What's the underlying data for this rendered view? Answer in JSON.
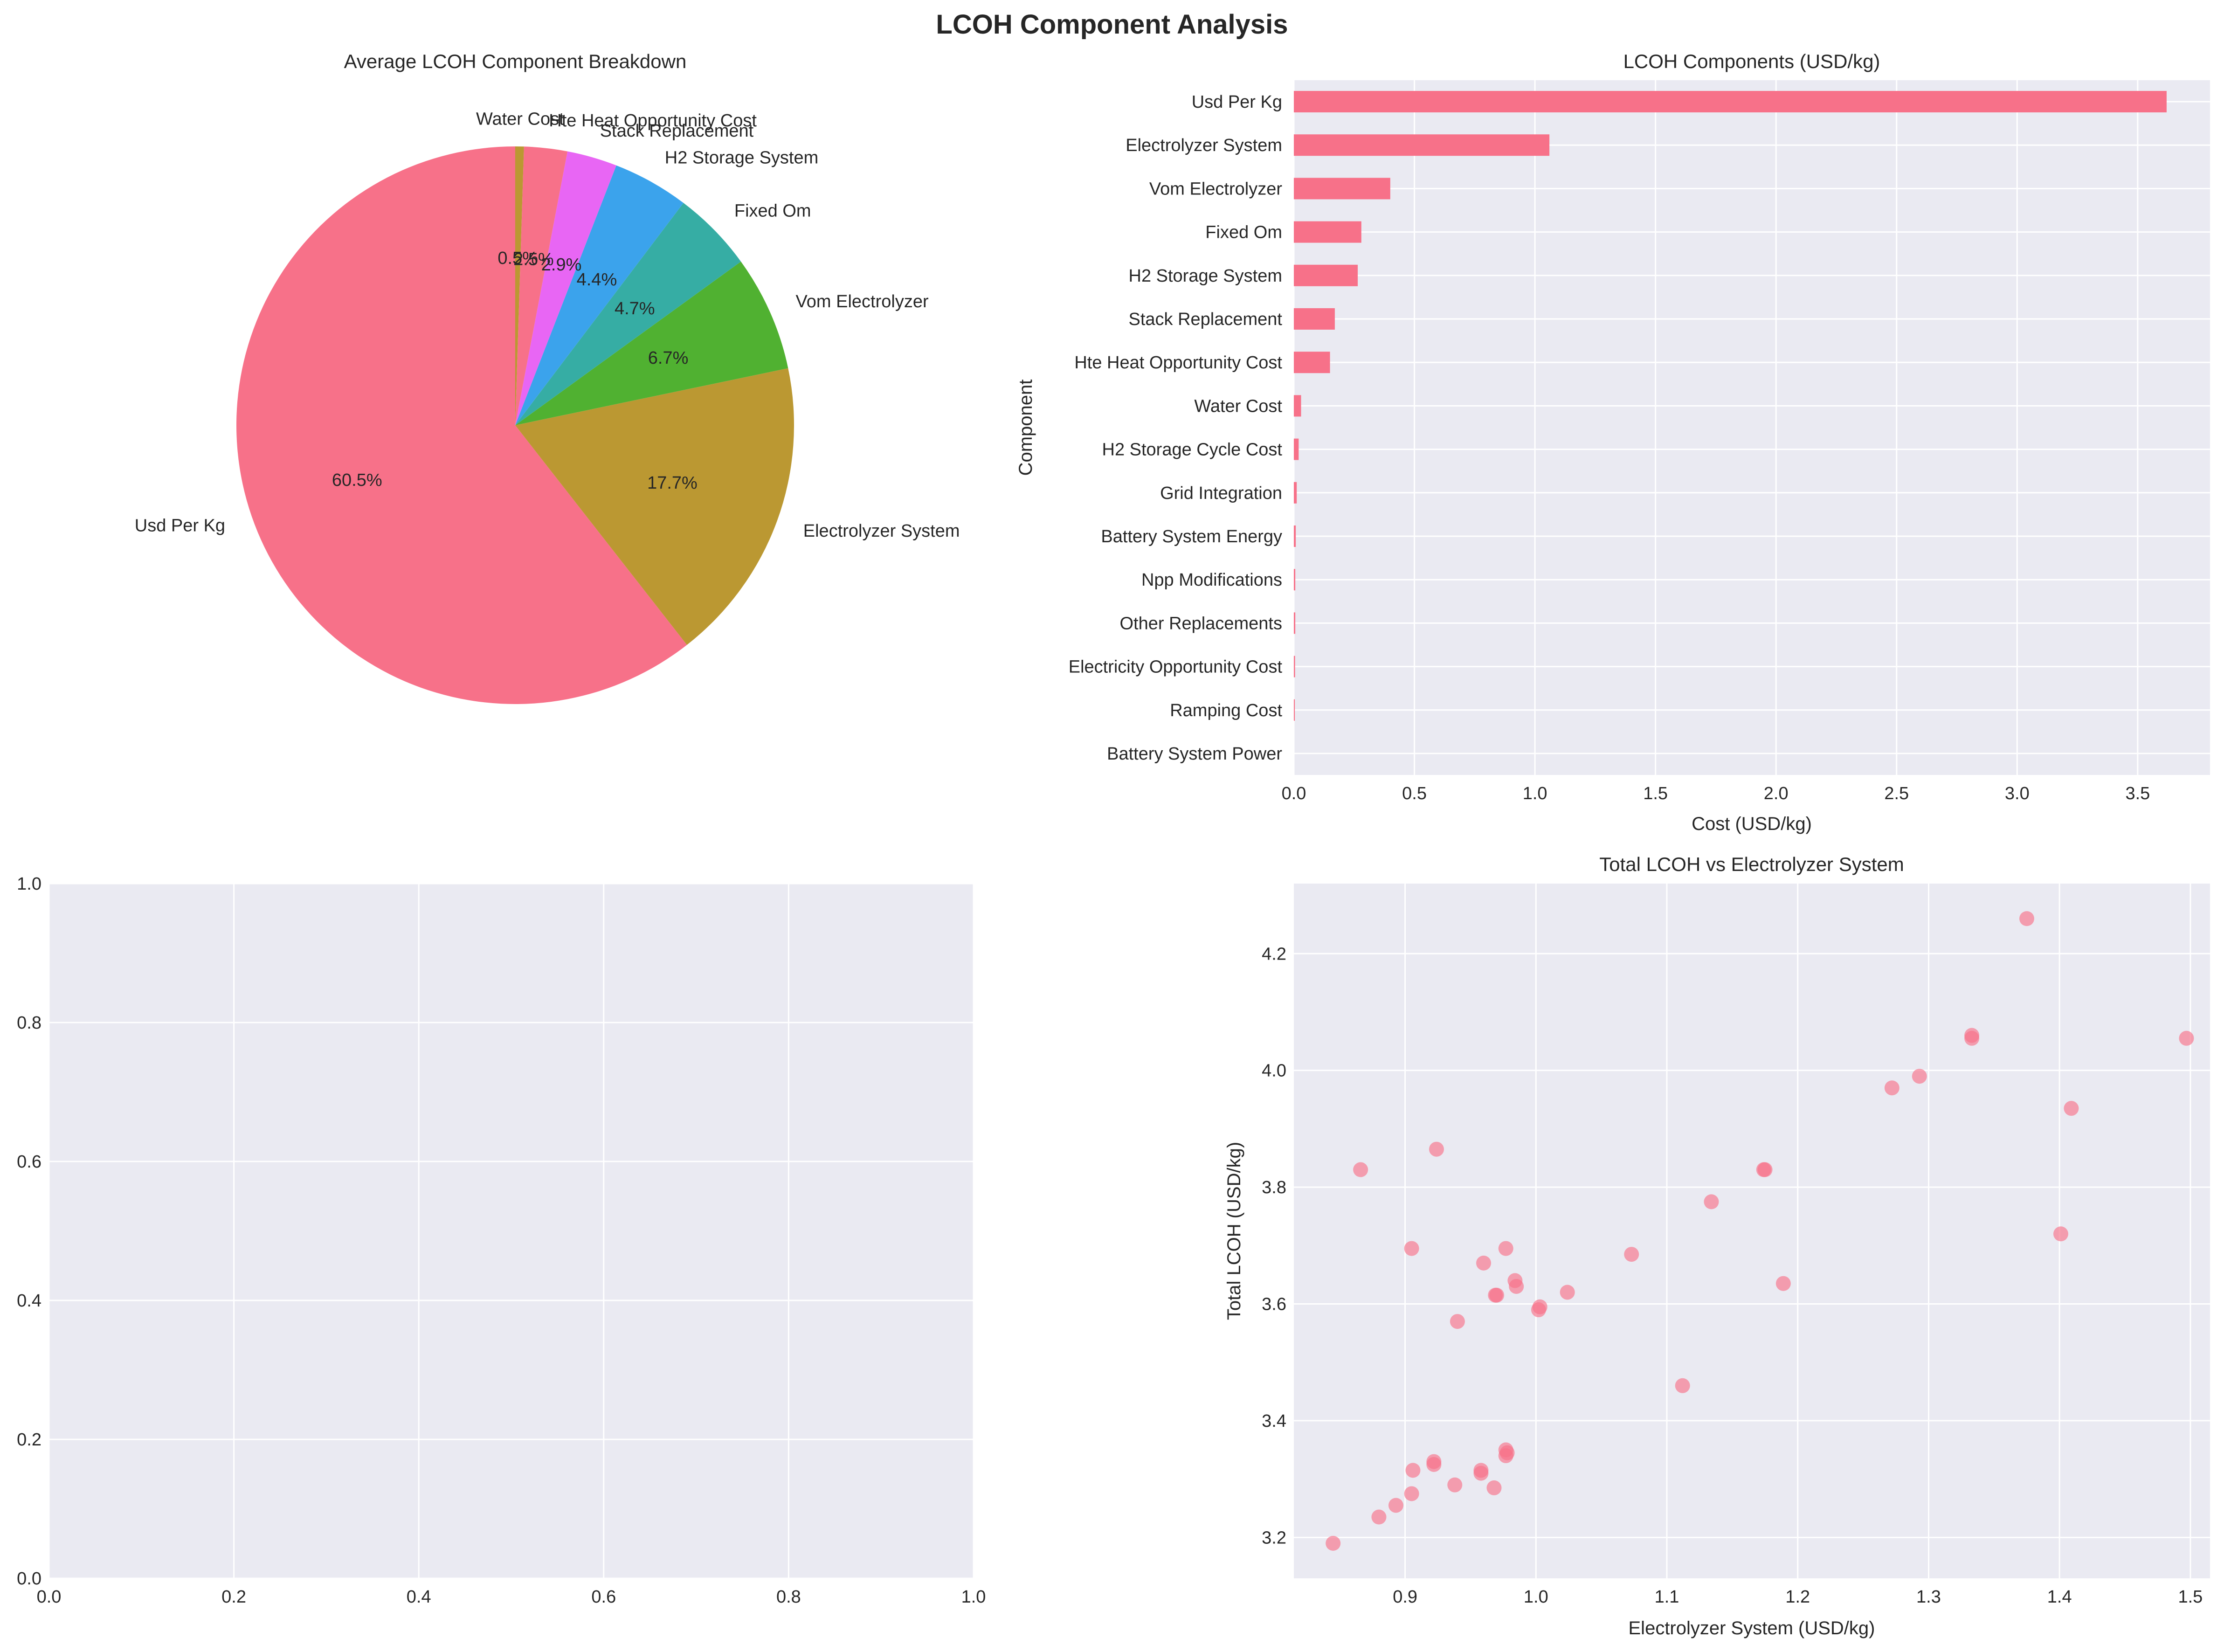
{
  "figure": {
    "title": "LCOH Component Analysis"
  },
  "chart_data": [
    {
      "type": "pie",
      "title": "Average LCOH Component Breakdown",
      "start_angle_deg": 90,
      "direction": "counterclockwise",
      "slices": [
        {
          "label": "Usd Per Kg",
          "pct": 60.5,
          "pct_label": "60.5%",
          "color": "#f77189"
        },
        {
          "label": "Electrolyzer System",
          "pct": 17.7,
          "pct_label": "17.7%",
          "color": "#bb9832"
        },
        {
          "label": "Vom Electrolyzer",
          "pct": 6.7,
          "pct_label": "6.7%",
          "color": "#50b131"
        },
        {
          "label": "Fixed Om",
          "pct": 4.7,
          "pct_label": "4.7%",
          "color": "#36ada4"
        },
        {
          "label": "H2 Storage System",
          "pct": 4.4,
          "pct_label": "4.4%",
          "color": "#3ba3ec"
        },
        {
          "label": "Stack Replacement",
          "pct": 2.9,
          "pct_label": "2.9%",
          "color": "#e866f4"
        },
        {
          "label": "Hte Heat Opportunity Cost",
          "pct": 2.5,
          "pct_label": "2.5%",
          "color": "#f77189"
        },
        {
          "label": "Water Cost",
          "pct": 0.5,
          "pct_label": "0.5%",
          "color": "#bb9832"
        }
      ]
    },
    {
      "type": "bar",
      "orientation": "horizontal",
      "title": "LCOH Components (USD/kg)",
      "xlabel": "Cost (USD/kg)",
      "ylabel": "Component",
      "xlim": [
        0,
        3.8
      ],
      "xticks": [
        0.0,
        0.5,
        1.0,
        1.5,
        2.0,
        2.5,
        3.0,
        3.5
      ],
      "xtick_labels": [
        "0.0",
        "0.5",
        "1.0",
        "1.5",
        "2.0",
        "2.5",
        "3.0",
        "3.5"
      ],
      "color": "#f77189",
      "categories": [
        "Usd Per Kg",
        "Electrolyzer System",
        "Vom Electrolyzer",
        "Fixed Om",
        "H2 Storage System",
        "Stack Replacement",
        "Hte Heat Opportunity Cost",
        "Water Cost",
        "H2 Storage Cycle Cost",
        "Grid Integration",
        "Battery System Energy",
        "Npp Modifications",
        "Other Replacements",
        "Electricity Opportunity Cost",
        "Ramping Cost",
        "Battery System Power"
      ],
      "values": [
        3.62,
        1.06,
        0.4,
        0.28,
        0.265,
        0.17,
        0.15,
        0.03,
        0.02,
        0.012,
        0.008,
        0.006,
        0.006,
        0.005,
        0.004,
        0.0
      ]
    },
    {
      "type": "scatter",
      "title": "",
      "xlabel": "",
      "ylabel": "",
      "xlim": [
        0,
        1
      ],
      "ylim": [
        0,
        1
      ],
      "xticks": [
        0.0,
        0.2,
        0.4,
        0.6,
        0.8,
        1.0
      ],
      "xtick_labels": [
        "0.0",
        "0.2",
        "0.4",
        "0.6",
        "0.8",
        "1.0"
      ],
      "yticks": [
        0.0,
        0.2,
        0.4,
        0.6,
        0.8,
        1.0
      ],
      "ytick_labels": [
        "0.0",
        "0.2",
        "0.4",
        "0.6",
        "0.8",
        "1.0"
      ],
      "points": []
    },
    {
      "type": "scatter",
      "title": "Total LCOH vs Electrolyzer System",
      "xlabel": "Electrolyzer System (USD/kg)",
      "ylabel": "Total LCOH (USD/kg)",
      "xlim": [
        0.815,
        1.515
      ],
      "ylim": [
        3.13,
        4.32
      ],
      "xticks": [
        0.9,
        1.0,
        1.1,
        1.2,
        1.3,
        1.4,
        1.5
      ],
      "xtick_labels": [
        "0.9",
        "1.0",
        "1.1",
        "1.2",
        "1.3",
        "1.4",
        "1.5"
      ],
      "yticks": [
        3.2,
        3.4,
        3.6,
        3.8,
        4.0,
        4.2
      ],
      "ytick_labels": [
        "3.2",
        "3.4",
        "3.6",
        "3.8",
        "4.0",
        "4.2"
      ],
      "color": "#f77189",
      "points": [
        [
          0.845,
          3.19
        ],
        [
          0.866,
          3.83
        ],
        [
          0.88,
          3.235
        ],
        [
          0.893,
          3.255
        ],
        [
          0.905,
          3.275
        ],
        [
          0.906,
          3.315
        ],
        [
          0.905,
          3.695
        ],
        [
          0.922,
          3.33
        ],
        [
          0.922,
          3.325
        ],
        [
          0.924,
          3.865
        ],
        [
          0.938,
          3.29
        ],
        [
          0.94,
          3.57
        ],
        [
          0.958,
          3.315
        ],
        [
          0.958,
          3.31
        ],
        [
          0.96,
          3.67
        ],
        [
          0.968,
          3.285
        ],
        [
          0.969,
          3.615
        ],
        [
          0.97,
          3.615
        ],
        [
          0.977,
          3.35
        ],
        [
          0.977,
          3.34
        ],
        [
          0.978,
          3.345
        ],
        [
          0.977,
          3.695
        ],
        [
          0.984,
          3.64
        ],
        [
          0.985,
          3.63
        ],
        [
          1.002,
          3.59
        ],
        [
          1.003,
          3.595
        ],
        [
          1.024,
          3.62
        ],
        [
          1.073,
          3.685
        ],
        [
          1.112,
          3.46
        ],
        [
          1.134,
          3.775
        ],
        [
          1.174,
          3.83
        ],
        [
          1.175,
          3.83
        ],
        [
          1.189,
          3.635
        ],
        [
          1.272,
          3.97
        ],
        [
          1.293,
          3.99
        ],
        [
          1.333,
          4.06
        ],
        [
          1.333,
          4.055
        ],
        [
          1.375,
          4.26
        ],
        [
          1.401,
          3.72
        ],
        [
          1.409,
          3.935
        ],
        [
          1.497,
          4.055
        ]
      ]
    }
  ]
}
